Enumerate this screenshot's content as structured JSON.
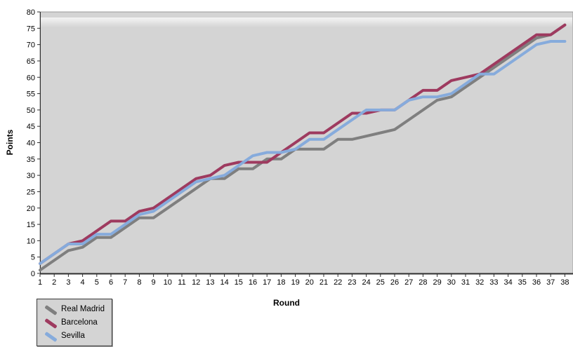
{
  "chart_data": {
    "type": "line",
    "title": "",
    "xlabel": "Round",
    "ylabel": "Points",
    "xlim": [
      1,
      38
    ],
    "ylim": [
      0,
      80
    ],
    "ytick_step": 5,
    "grid": false,
    "legend_position": "bottom-left",
    "plot_bg": "#d4d4d4",
    "outer_bg": "#ffffff",
    "axis_color": "#2f2f2f",
    "x": [
      1,
      2,
      3,
      4,
      5,
      6,
      7,
      8,
      9,
      10,
      11,
      12,
      13,
      14,
      15,
      16,
      17,
      18,
      19,
      20,
      21,
      22,
      23,
      24,
      25,
      26,
      27,
      28,
      29,
      30,
      31,
      32,
      33,
      34,
      35,
      36,
      37,
      38
    ],
    "yticks": [
      0,
      5,
      10,
      15,
      20,
      25,
      30,
      35,
      40,
      45,
      50,
      55,
      60,
      65,
      70,
      75,
      80
    ],
    "series": [
      {
        "name": "Real Madrid",
        "color": "#7f7f7f",
        "values": [
          1,
          4,
          7,
          8,
          11,
          11,
          14,
          17,
          17,
          20,
          23,
          26,
          29,
          29,
          32,
          32,
          35,
          35,
          38,
          38,
          38,
          41,
          41,
          42,
          43,
          44,
          47,
          50,
          53,
          54,
          57,
          60,
          63,
          66,
          69,
          72,
          73,
          76
        ]
      },
      {
        "name": "Barcelona",
        "color": "#9e3a5f",
        "values": [
          3,
          6,
          9,
          10,
          13,
          16,
          16,
          19,
          20,
          23,
          26,
          29,
          30,
          33,
          34,
          34,
          34,
          37,
          40,
          43,
          43,
          46,
          49,
          49,
          50,
          50,
          53,
          56,
          56,
          59,
          60,
          61,
          64,
          67,
          70,
          73,
          73,
          76
        ]
      },
      {
        "name": "Sevilla",
        "color": "#86abdc",
        "values": [
          3,
          6,
          9,
          9,
          12,
          12,
          15,
          18,
          19,
          22,
          25,
          28,
          29,
          30,
          33,
          36,
          37,
          37,
          38,
          41,
          41,
          44,
          47,
          50,
          50,
          50,
          53,
          54,
          54,
          55,
          58,
          61,
          61,
          64,
          67,
          70,
          71,
          71
        ]
      }
    ]
  }
}
